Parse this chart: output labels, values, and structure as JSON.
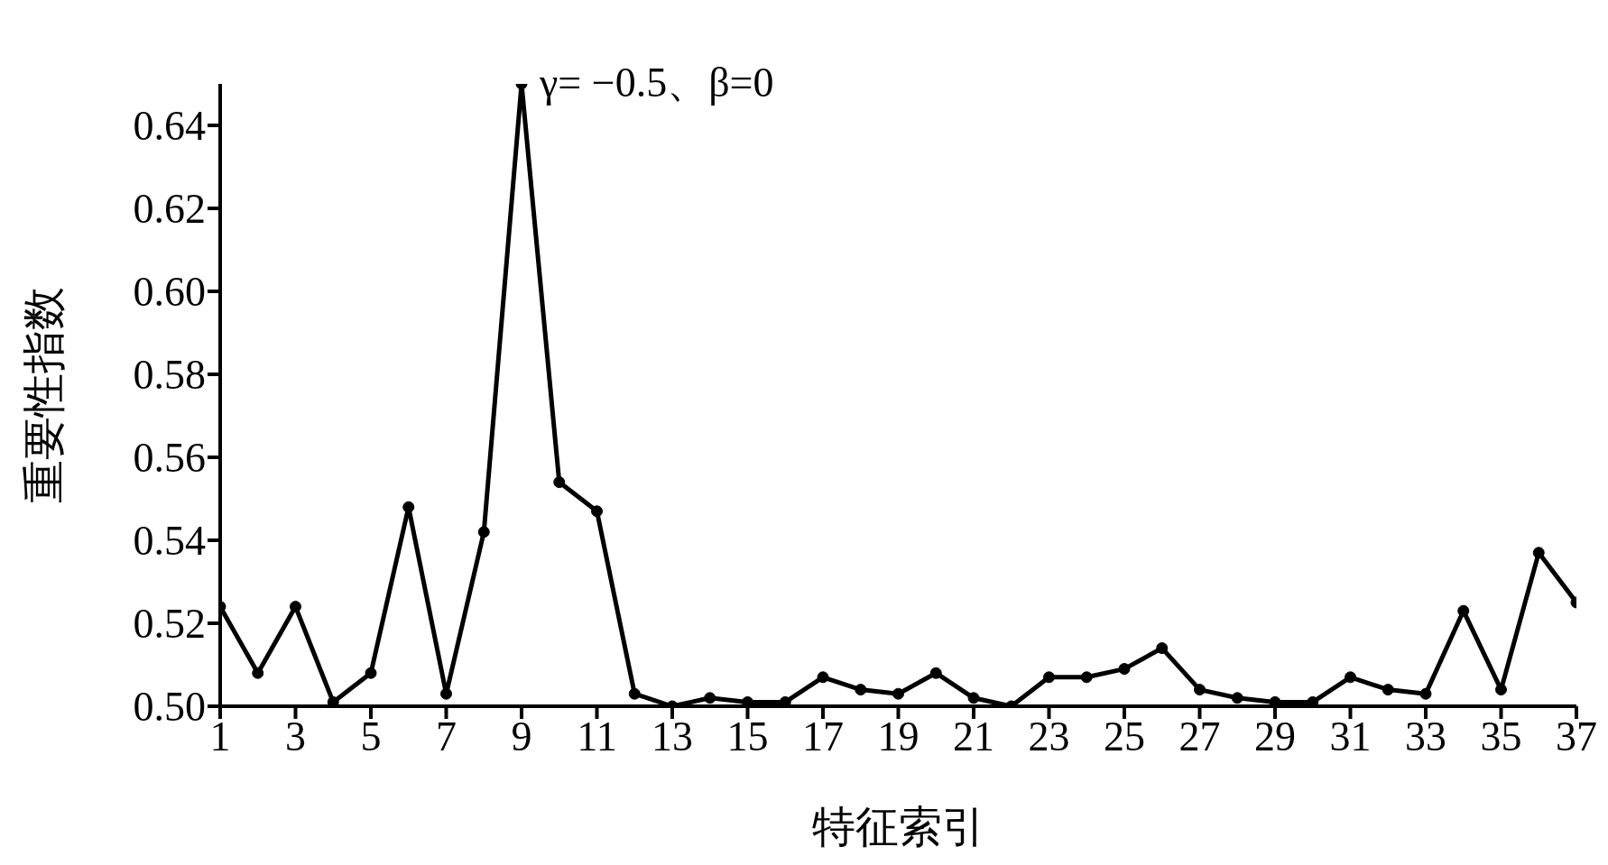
{
  "chart_data": {
    "type": "line",
    "xlabel": "特征索引",
    "ylabel": "重要性指数",
    "x": [
      1,
      2,
      3,
      4,
      5,
      6,
      7,
      8,
      9,
      10,
      11,
      12,
      13,
      14,
      15,
      16,
      17,
      18,
      19,
      20,
      21,
      22,
      23,
      24,
      25,
      26,
      27,
      28,
      29,
      30,
      31,
      32,
      33,
      34,
      35,
      36,
      37
    ],
    "series": [
      {
        "color": "#000000",
        "values": [
          0.524,
          0.508,
          0.524,
          0.501,
          0.508,
          0.548,
          0.503,
          0.542,
          0.65,
          0.554,
          0.547,
          0.503,
          0.5,
          0.502,
          0.501,
          0.501,
          0.507,
          0.504,
          0.503,
          0.508,
          0.502,
          0.5,
          0.507,
          0.507,
          0.509,
          0.514,
          0.504,
          0.502,
          0.501,
          0.501,
          0.507,
          0.504,
          0.503,
          0.523,
          0.504,
          0.537,
          0.525
        ]
      }
    ],
    "xlim": [
      1,
      37
    ],
    "xticks": [
      1,
      3,
      5,
      7,
      9,
      11,
      13,
      15,
      17,
      19,
      21,
      23,
      25,
      27,
      29,
      31,
      33,
      35,
      37
    ],
    "ylim": [
      0.5,
      0.65
    ],
    "yticks": [
      {
        "value": 0.5,
        "label": "0.50"
      },
      {
        "value": 0.52,
        "label": "0.52"
      },
      {
        "value": 0.54,
        "label": "0.54"
      },
      {
        "value": 0.56,
        "label": "0.56"
      },
      {
        "value": 0.58,
        "label": "0.58"
      },
      {
        "value": 0.6,
        "label": "0.60"
      },
      {
        "value": 0.62,
        "label": "0.62"
      },
      {
        "value": 0.64,
        "label": "0.64"
      }
    ],
    "annotations": [
      {
        "text": "γ= −0.5、β=0",
        "x": 9,
        "y": 0.65
      }
    ],
    "grid": false,
    "legend": false,
    "marker": "circle",
    "line_style": "solid"
  }
}
